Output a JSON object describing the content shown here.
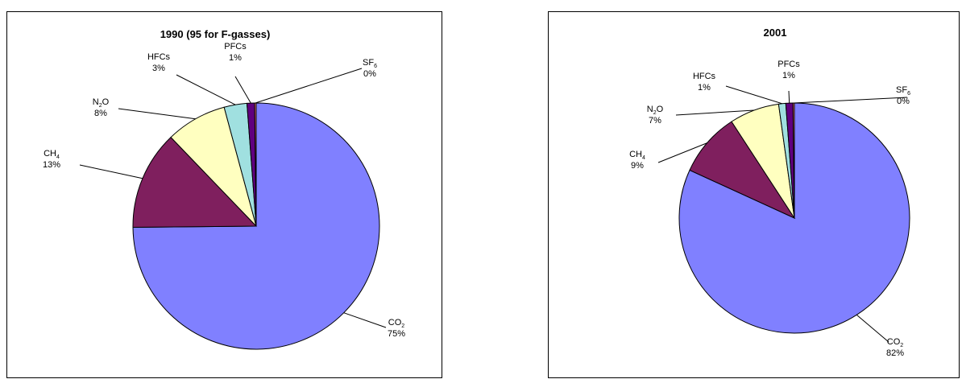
{
  "chart_data": [
    {
      "type": "pie",
      "title": "1990 (95 for F-gasses)",
      "slices": [
        {
          "base": "CO",
          "sub": "2",
          "label": "CO2",
          "value": 75,
          "pct": "75%",
          "color": "#8080FF"
        },
        {
          "base": "CH",
          "sub": "4",
          "label": "CH4",
          "value": 13,
          "pct": "13%",
          "color": "#7F1F5E"
        },
        {
          "base": "N",
          "sub": "2",
          "tail": "O",
          "label": "N2O",
          "value": 8,
          "pct": "8%",
          "color": "#FFFFC0"
        },
        {
          "base": "HFCs",
          "label": "HFCs",
          "value": 3,
          "pct": "3%",
          "color": "#A0E0E0"
        },
        {
          "base": "PFCs",
          "label": "PFCs",
          "value": 1,
          "pct": "1%",
          "color": "#60007F"
        },
        {
          "base": "SF",
          "sub": "6",
          "label": "SF6",
          "value": 0,
          "pct": "0%",
          "color": "#FF8080"
        }
      ]
    },
    {
      "type": "pie",
      "title": "2001",
      "slices": [
        {
          "base": "CO",
          "sub": "2",
          "label": "CO2",
          "value": 82,
          "pct": "82%",
          "color": "#8080FF"
        },
        {
          "base": "CH",
          "sub": "4",
          "label": "CH4",
          "value": 9,
          "pct": "9%",
          "color": "#7F1F5E"
        },
        {
          "base": "N",
          "sub": "2",
          "tail": "O",
          "label": "N2O",
          "value": 7,
          "pct": "7%",
          "color": "#FFFFC0"
        },
        {
          "base": "HFCs",
          "label": "HFCs",
          "value": 1,
          "pct": "1%",
          "color": "#A0E0E0"
        },
        {
          "base": "PFCs",
          "label": "PFCs",
          "value": 1,
          "pct": "1%",
          "color": "#60007F"
        },
        {
          "base": "SF",
          "sub": "6",
          "label": "SF6",
          "value": 0,
          "pct": "0%",
          "color": "#FF8080"
        }
      ]
    }
  ]
}
